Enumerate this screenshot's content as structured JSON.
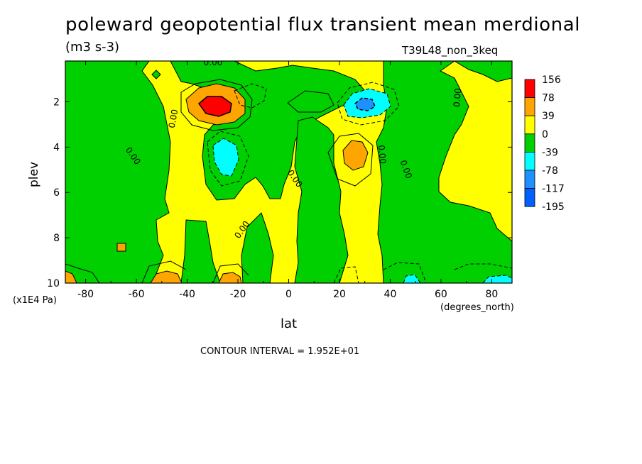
{
  "chart_data": {
    "type": "heatmap",
    "title": "poleward geopotential flux transient mean merdional",
    "subtitle": "(m3 s-3)",
    "run_name": "T39L48_non_3keq",
    "xlabel": "lat",
    "ylabel": "plev",
    "x_unit": "(degrees_north)",
    "y_unit": "(x1E4 Pa)",
    "x_ticks": [
      -80,
      -60,
      -40,
      -20,
      0,
      20,
      40,
      60,
      80
    ],
    "y_ticks": [
      2,
      4,
      6,
      8,
      10
    ],
    "xlim": [
      -88,
      88
    ],
    "ylim": [
      10,
      0.2
    ],
    "zero_contour_label": "0.00",
    "contour_interval_text": "CONTOUR INTERVAL = 1.952E+01",
    "colorbar": {
      "levels": [
        "156",
        "78",
        "39",
        "0",
        "-39",
        "-78",
        "-117",
        "-195"
      ],
      "colors": [
        "#ff0000",
        "#ffa500",
        "#ffff00",
        "#00d000",
        "#00ffff",
        "#1e90ff",
        "#0060ff"
      ]
    },
    "features": [
      {
        "kind": "positive-max",
        "lat": -29,
        "plev": 2.1,
        "level": "156"
      },
      {
        "kind": "negative-min",
        "lat": -25,
        "plev": 4.2,
        "level": "-78"
      },
      {
        "kind": "negative-min",
        "lat": 30,
        "plev": 2.1,
        "level": "-117"
      },
      {
        "kind": "positive-max",
        "lat": 26,
        "plev": 4.2,
        "level": "78"
      },
      {
        "kind": "positive-max",
        "lat": -50,
        "plev": 9.8,
        "level": "78"
      },
      {
        "kind": "positive-max",
        "lat": -22,
        "plev": 9.8,
        "level": "78"
      },
      {
        "kind": "positive-max",
        "lat": -87,
        "plev": 9.8,
        "level": "78"
      },
      {
        "kind": "negative-min",
        "lat": 48,
        "plev": 9.9,
        "level": "-78"
      },
      {
        "kind": "negative-min",
        "lat": 84,
        "plev": 9.9,
        "level": "-78"
      }
    ]
  }
}
